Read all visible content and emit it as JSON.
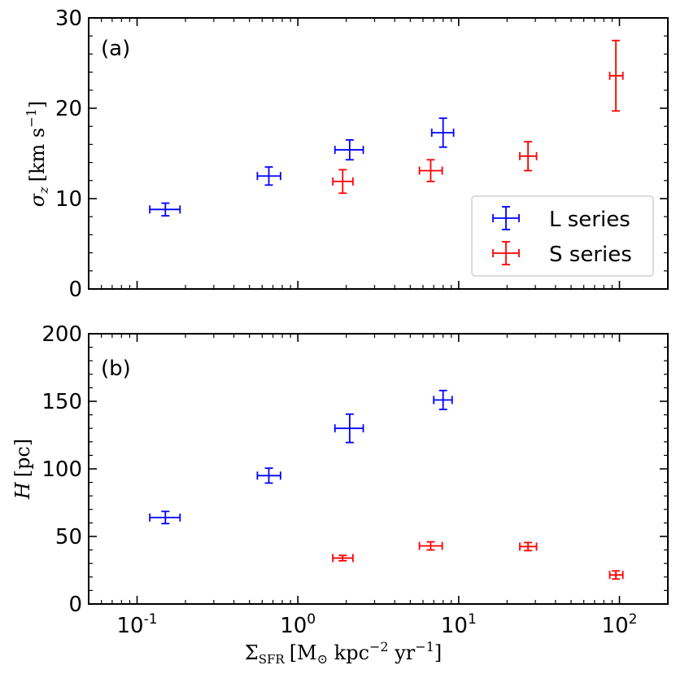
{
  "chart_data": [
    {
      "type": "scatter",
      "panel_label": "(a)",
      "ylabel": {
        "base": "σ",
        "sub": "z",
        "unit_open": "[km s",
        "unit_sup": "−1",
        "unit_close": "]"
      },
      "xscale": "log",
      "xlim": [
        0.05,
        200
      ],
      "ylim": [
        0,
        30
      ],
      "yticks": [
        0,
        10,
        20,
        30
      ],
      "ytick_labels": [
        "0",
        "10",
        "20",
        "30"
      ],
      "legend": {
        "location": "lower right",
        "entries": [
          "L series",
          "S series"
        ]
      },
      "series": [
        {
          "name": "L series",
          "color": "#0000ff",
          "points": [
            {
              "x": 0.15,
              "xerr_lo": 0.03,
              "xerr_hi": 0.035,
              "y": 8.8,
              "yerr": 0.7
            },
            {
              "x": 0.66,
              "xerr_lo": 0.1,
              "xerr_hi": 0.12,
              "y": 12.5,
              "yerr": 1.0
            },
            {
              "x": 2.1,
              "xerr_lo": 0.4,
              "xerr_hi": 0.45,
              "y": 15.4,
              "yerr": 1.1
            },
            {
              "x": 8.0,
              "xerr_lo": 1.2,
              "xerr_hi": 1.3,
              "y": 17.3,
              "yerr": 1.6
            }
          ]
        },
        {
          "name": "S series",
          "color": "#ff0000",
          "points": [
            {
              "x": 1.9,
              "xerr_lo": 0.25,
              "xerr_hi": 0.3,
              "y": 11.9,
              "yerr": 1.3
            },
            {
              "x": 6.7,
              "xerr_lo": 1.0,
              "xerr_hi": 1.2,
              "y": 13.1,
              "yerr": 1.2
            },
            {
              "x": 27,
              "xerr_lo": 3,
              "xerr_hi": 3.5,
              "y": 14.7,
              "yerr": 1.6
            },
            {
              "x": 95,
              "xerr_lo": 8,
              "xerr_hi": 10,
              "y": 23.6,
              "yerr": 3.9
            }
          ]
        }
      ]
    },
    {
      "type": "scatter",
      "panel_label": "(b)",
      "ylabel": {
        "base": "H",
        "unit": "[pc]"
      },
      "xlabel": {
        "base": "Σ",
        "sub": "SFR",
        "unit_open": "[M",
        "unit_sub": "⊙",
        "unit_mid": " kpc",
        "unit_sup1": "−2",
        "unit_mid2": " yr",
        "unit_sup2": "−1",
        "unit_close": "]"
      },
      "xscale": "log",
      "xlim": [
        0.05,
        200
      ],
      "ylim": [
        0,
        200
      ],
      "yticks": [
        0,
        50,
        100,
        150,
        200
      ],
      "ytick_labels": [
        "0",
        "50",
        "100",
        "150",
        "200"
      ],
      "xticks": [
        0.1,
        1,
        10,
        100
      ],
      "xtick_labels": [
        {
          "base": "10",
          "sup": "-1"
        },
        {
          "base": "10",
          "sup": "0"
        },
        {
          "base": "10",
          "sup": "1"
        },
        {
          "base": "10",
          "sup": "2"
        }
      ],
      "series": [
        {
          "name": "L series",
          "color": "#0000ff",
          "points": [
            {
              "x": 0.15,
              "xerr_lo": 0.03,
              "xerr_hi": 0.035,
              "y": 64,
              "yerr": 4.5
            },
            {
              "x": 0.66,
              "xerr_lo": 0.1,
              "xerr_hi": 0.12,
              "y": 95,
              "yerr": 5.5
            },
            {
              "x": 2.1,
              "xerr_lo": 0.4,
              "xerr_hi": 0.45,
              "y": 130,
              "yerr": 10.5
            },
            {
              "x": 8.0,
              "xerr_lo": 1.0,
              "xerr_hi": 1.1,
              "y": 151,
              "yerr": 7
            }
          ]
        },
        {
          "name": "S series",
          "color": "#ff0000",
          "points": [
            {
              "x": 1.9,
              "xerr_lo": 0.25,
              "xerr_hi": 0.3,
              "y": 34,
              "yerr": 2
            },
            {
              "x": 6.7,
              "xerr_lo": 1.0,
              "xerr_hi": 1.2,
              "y": 43,
              "yerr": 3
            },
            {
              "x": 27,
              "xerr_lo": 3,
              "xerr_hi": 3.5,
              "y": 42.5,
              "yerr": 3
            },
            {
              "x": 95,
              "xerr_lo": 8,
              "xerr_hi": 10,
              "y": 21.5,
              "yerr": 3
            }
          ]
        }
      ]
    }
  ]
}
